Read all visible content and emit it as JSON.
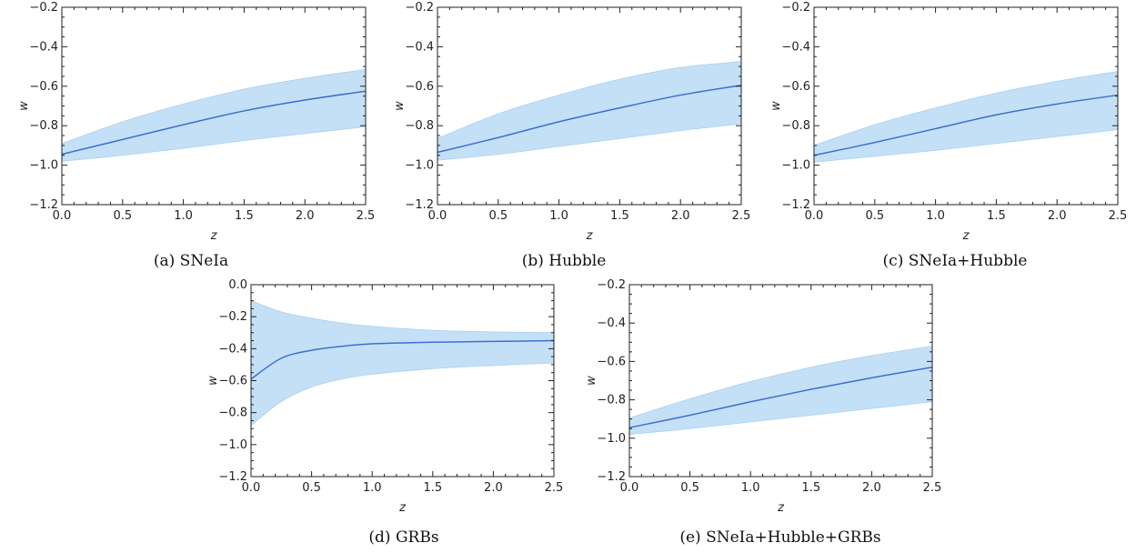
{
  "chart_data": [
    {
      "type": "area",
      "caption": "(a) SNeIa",
      "xlabel": "z",
      "ylabel": "w",
      "xlim": [
        0,
        2.5
      ],
      "ylim": [
        -1.2,
        -0.2
      ],
      "xticks": [
        "0.0",
        "0.5",
        "1.0",
        "1.5",
        "2.0",
        "2.5"
      ],
      "yticks": [
        "-1.2",
        "-1.0",
        "-0.8",
        "-0.6",
        "-0.4",
        "-0.2"
      ],
      "x": [
        0,
        0.5,
        1.0,
        1.5,
        2.0,
        2.5
      ],
      "series": [
        {
          "values": [
            -0.945,
            -0.87,
            -0.795,
            -0.725,
            -0.67,
            -0.625
          ]
        },
        {
          "values": [
            -0.89,
            -0.78,
            -0.69,
            -0.615,
            -0.56,
            -0.515
          ]
        },
        {
          "values": [
            -0.98,
            -0.95,
            -0.915,
            -0.875,
            -0.84,
            -0.805
          ]
        }
      ]
    },
    {
      "type": "area",
      "caption": "(b) Hubble",
      "xlabel": "z",
      "ylabel": "w",
      "xlim": [
        0,
        2.5
      ],
      "ylim": [
        -1.2,
        -0.2
      ],
      "xticks": [
        "0.0",
        "0.5",
        "1.0",
        "1.5",
        "2.0",
        "2.5"
      ],
      "yticks": [
        "-1.2",
        "-1.0",
        "-0.8",
        "-0.6",
        "-0.4",
        "-0.2"
      ],
      "x": [
        0,
        0.5,
        1.0,
        1.5,
        2.0,
        2.5
      ],
      "series": [
        {
          "values": [
            -0.935,
            -0.86,
            -0.78,
            -0.71,
            -0.645,
            -0.595
          ]
        },
        {
          "values": [
            -0.865,
            -0.74,
            -0.645,
            -0.565,
            -0.505,
            -0.475
          ]
        },
        {
          "values": [
            -0.975,
            -0.945,
            -0.905,
            -0.865,
            -0.825,
            -0.79
          ]
        }
      ]
    },
    {
      "type": "area",
      "caption": "(c) SNeIa+Hubble",
      "xlabel": "z",
      "ylabel": "w",
      "xlim": [
        0,
        2.5
      ],
      "ylim": [
        -1.2,
        -0.2
      ],
      "xticks": [
        "0.0",
        "0.5",
        "1.0",
        "1.5",
        "2.0",
        "2.5"
      ],
      "yticks": [
        "-1.2",
        "-1.0",
        "-0.8",
        "-0.6",
        "-0.4",
        "-0.2"
      ],
      "x": [
        0,
        0.5,
        1.0,
        1.5,
        2.0,
        2.5
      ],
      "series": [
        {
          "values": [
            -0.95,
            -0.885,
            -0.815,
            -0.745,
            -0.69,
            -0.645
          ]
        },
        {
          "values": [
            -0.9,
            -0.795,
            -0.71,
            -0.635,
            -0.575,
            -0.525
          ]
        },
        {
          "values": [
            -0.985,
            -0.955,
            -0.925,
            -0.89,
            -0.855,
            -0.82
          ]
        }
      ]
    },
    {
      "type": "area",
      "caption": "(d) GRBs",
      "xlabel": "z",
      "ylabel": "w",
      "xlim": [
        0,
        2.5
      ],
      "ylim": [
        -1.2,
        0.0
      ],
      "xticks": [
        "0.0",
        "0.5",
        "1.0",
        "1.5",
        "2.0",
        "2.5"
      ],
      "yticks": [
        "-1.2",
        "-1.0",
        "-0.8",
        "-0.6",
        "-0.4",
        "-0.2",
        "0.0"
      ],
      "x": [
        0,
        0.25,
        0.5,
        0.75,
        1.0,
        1.5,
        2.0,
        2.5
      ],
      "series": [
        {
          "values": [
            -0.59,
            -0.46,
            -0.41,
            -0.385,
            -0.37,
            -0.36,
            -0.355,
            -0.35
          ]
        },
        {
          "values": [
            -0.1,
            -0.17,
            -0.21,
            -0.24,
            -0.26,
            -0.285,
            -0.295,
            -0.3
          ]
        },
        {
          "values": [
            -0.88,
            -0.73,
            -0.64,
            -0.59,
            -0.56,
            -0.525,
            -0.505,
            -0.49
          ]
        }
      ]
    },
    {
      "type": "area",
      "caption": "(e) SNeIa+Hubble+GRBs",
      "xlabel": "z",
      "ylabel": "w",
      "xlim": [
        0,
        2.5
      ],
      "ylim": [
        -1.2,
        -0.2
      ],
      "xticks": [
        "0.0",
        "0.5",
        "1.0",
        "1.5",
        "2.0",
        "2.5"
      ],
      "yticks": [
        "-1.2",
        "-1.0",
        "-0.8",
        "-0.6",
        "-0.4",
        "-0.2"
      ],
      "x": [
        0,
        0.5,
        1.0,
        1.5,
        2.0,
        2.5
      ],
      "series": [
        {
          "values": [
            -0.945,
            -0.88,
            -0.81,
            -0.745,
            -0.685,
            -0.63
          ]
        },
        {
          "values": [
            -0.895,
            -0.795,
            -0.705,
            -0.63,
            -0.57,
            -0.52
          ]
        },
        {
          "values": [
            -0.98,
            -0.95,
            -0.915,
            -0.88,
            -0.845,
            -0.81
          ]
        }
      ]
    }
  ],
  "colors": {
    "band": "#c4e0f7",
    "curve": "#3d6fd0",
    "axis": "#222222"
  }
}
